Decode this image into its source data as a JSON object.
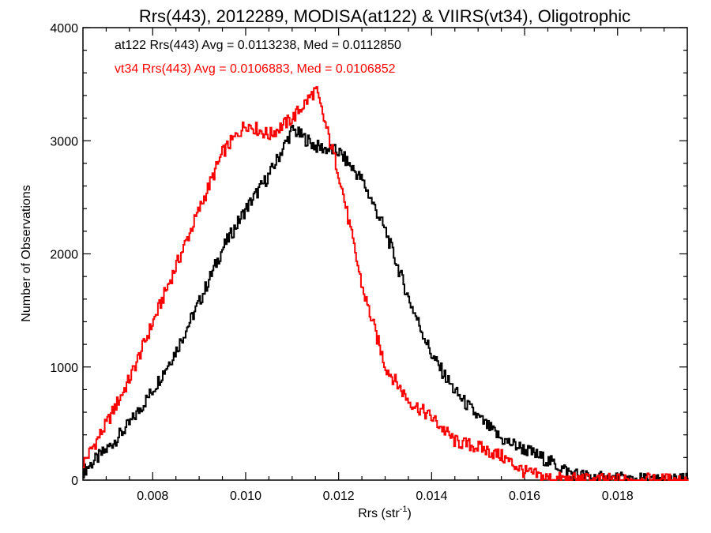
{
  "chart_data": {
    "type": "line",
    "title": "Rrs(443), 2012289, MODISA(at122) & VIIRS(vt34), Oligotrophic",
    "xlabel_main": "Rrs (str",
    "xlabel_sup": "-1",
    "xlabel_close": ")",
    "ylabel": "Number of Observations",
    "xlim": [
      0.0065,
      0.0195
    ],
    "ylim": [
      0,
      4000
    ],
    "xticks": [
      0.008,
      0.01,
      0.012,
      0.014,
      0.016,
      0.018
    ],
    "xtick_labels": [
      "0.008",
      "0.010",
      "0.012",
      "0.014",
      "0.016",
      "0.018"
    ],
    "yticks": [
      0,
      1000,
      2000,
      3000,
      4000
    ],
    "ytick_labels": [
      "0",
      "1000",
      "2000",
      "3000",
      "4000"
    ],
    "grid": false,
    "legend": [
      {
        "text": "at122 Rrs(443) Avg = 0.0113238, Med = 0.0112850",
        "color": "#000000"
      },
      {
        "text": "vt34 Rrs(443) Avg = 0.0106883, Med = 0.0106852",
        "color": "#ff0000"
      }
    ],
    "series": [
      {
        "color": "#000000",
        "x": [
          0.0065,
          0.007,
          0.0075,
          0.008,
          0.0085,
          0.009,
          0.0095,
          0.01,
          0.0105,
          0.011,
          0.0115,
          0.012,
          0.0125,
          0.013,
          0.0135,
          0.014,
          0.0145,
          0.015,
          0.0155,
          0.016,
          0.0165,
          0.017,
          0.0175,
          0.018,
          0.0185,
          0.019,
          0.0195
        ],
        "y": [
          80,
          270,
          500,
          800,
          1150,
          1580,
          2050,
          2400,
          2700,
          3100,
          2950,
          2900,
          2650,
          2200,
          1600,
          1100,
          780,
          550,
          360,
          270,
          170,
          60,
          20,
          10,
          5,
          0,
          0
        ]
      },
      {
        "color": "#ff0000",
        "x": [
          0.0065,
          0.007,
          0.0075,
          0.008,
          0.0085,
          0.009,
          0.0095,
          0.01,
          0.0105,
          0.011,
          0.0115,
          0.012,
          0.0125,
          0.013,
          0.0135,
          0.014,
          0.0145,
          0.015,
          0.0155,
          0.016,
          0.0165,
          0.017,
          0.0175,
          0.018,
          0.0185,
          0.019,
          0.0195
        ],
        "y": [
          150,
          500,
          900,
          1400,
          1900,
          2400,
          2900,
          3150,
          3050,
          3200,
          3450,
          2700,
          1700,
          1000,
          700,
          550,
          340,
          290,
          210,
          70,
          15,
          5,
          0,
          0,
          0,
          0,
          0
        ]
      }
    ]
  }
}
